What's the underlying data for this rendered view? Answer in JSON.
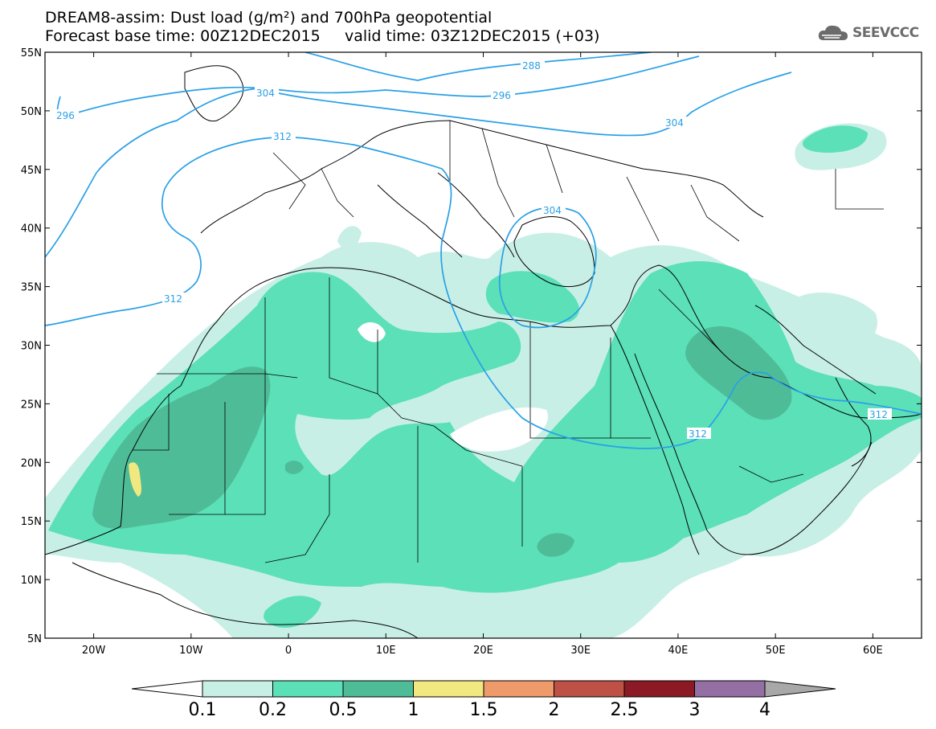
{
  "header": {
    "title_line1": "DREAM8-assim: Dust load (g/m²) and 700hPa geopotential",
    "title_line2": "Forecast base time: 00Z12DEC2015     valid time: 03Z12DEC2015 (+03)",
    "logo_text": "SEEVCCC"
  },
  "map": {
    "lat_labels": [
      "55N",
      "50N",
      "45N",
      "40N",
      "35N",
      "30N",
      "25N",
      "20N",
      "15N",
      "10N",
      "5N"
    ],
    "lon_labels": [
      "20W",
      "10W",
      "0",
      "10E",
      "20E",
      "30E",
      "40E",
      "50E",
      "60E"
    ],
    "extent": {
      "lon_min": -25,
      "lon_max": 65,
      "lat_min": 5,
      "lat_max": 55
    }
  },
  "contours": {
    "labels": [
      "288",
      "296",
      "296",
      "304",
      "304",
      "304",
      "312",
      "312",
      "312",
      "312"
    ]
  },
  "colorbar": {
    "labels": [
      "0.1",
      "0.2",
      "0.5",
      "1",
      "1.5",
      "2",
      "2.5",
      "3",
      "4"
    ],
    "colors": [
      "#c8efe6",
      "#5be0b8",
      "#4fbc98",
      "#f2e880",
      "#ef9a6a",
      "#bd5145",
      "#8b1a25",
      "#946fa4"
    ],
    "below_color": "#ffffff",
    "above_color": "#a8a8a8"
  },
  "colors": {
    "contour_line": "#2aa0e6",
    "dust_01": "#c8efe6",
    "dust_02": "#5be0b8",
    "dust_05": "#4fbc98",
    "dust_1": "#f2e880"
  }
}
